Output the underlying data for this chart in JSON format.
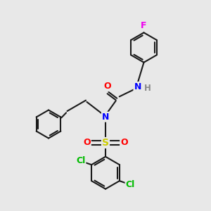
{
  "background_color": "#e8e8e8",
  "bond_color": "#1a1a1a",
  "atom_colors": {
    "F": "#ee00ee",
    "N": "#0000ff",
    "H": "#888888",
    "O": "#ff0000",
    "S": "#cccc00",
    "Cl": "#00bb00",
    "C": "#1a1a1a"
  },
  "figsize": [
    3.0,
    3.0
  ],
  "dpi": 100
}
